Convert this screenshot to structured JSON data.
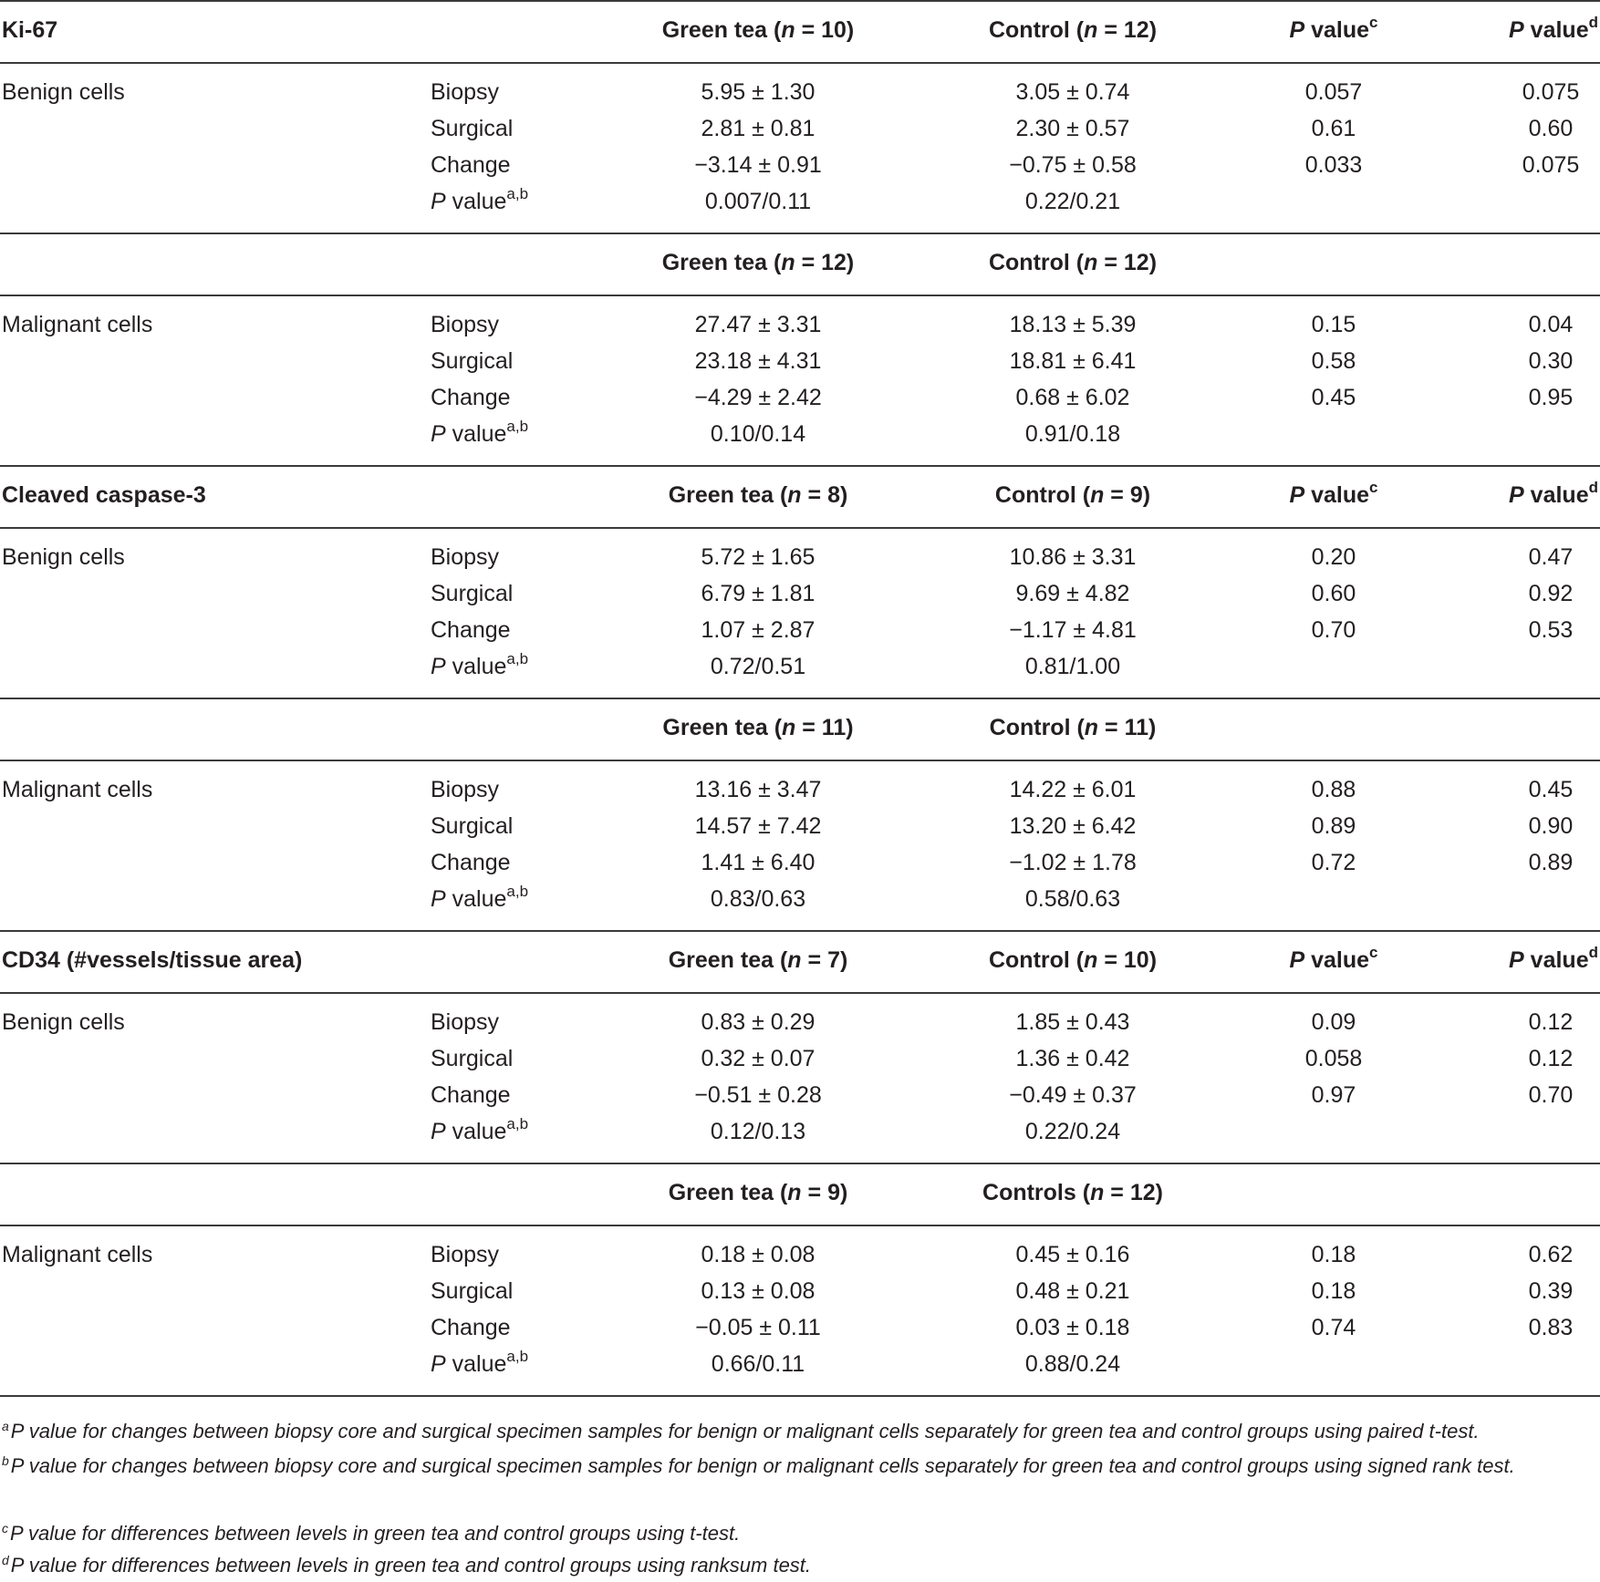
{
  "columns": {
    "p_label": "P",
    "value_word": " value",
    "pvalue_c_sup": "c",
    "pvalue_d_sup": "d",
    "pvalue_ab_sup": "a,b"
  },
  "sections": [
    {
      "title": "Ki-67",
      "groups": [
        {
          "label": "Benign cells",
          "gt_header": "Green tea (",
          "gt_n": "n",
          "gt_eq": " = 10)",
          "ct_header": "Control (",
          "ct_n": "n",
          "ct_eq": " = 12)",
          "rows": [
            {
              "sub": "Biopsy",
              "gt": "5.95 ± 1.30",
              "ct": "3.05 ± 0.74",
              "pc": "0.057",
              "pd": "0.075"
            },
            {
              "sub": "Surgical",
              "gt": "2.81 ± 0.81",
              "ct": "2.30 ± 0.57",
              "pc": "0.61",
              "pd": "0.60"
            },
            {
              "sub": "Change",
              "gt": "−3.14 ± 0.91",
              "ct": "−0.75 ± 0.58",
              "pc": "0.033",
              "pd": "0.075"
            },
            {
              "sub": "P value",
              "gt": "0.007/0.11",
              "ct": "0.22/0.21",
              "pc": "",
              "pd": ""
            }
          ]
        },
        {
          "label": "Malignant cells",
          "gt_header": "Green tea (",
          "gt_n": "n",
          "gt_eq": " = 12)",
          "ct_header": "Control (",
          "ct_n": "n",
          "ct_eq": " = 12)",
          "rows": [
            {
              "sub": "Biopsy",
              "gt": "27.47 ± 3.31",
              "ct": "18.13 ± 5.39",
              "pc": "0.15",
              "pd": "0.04"
            },
            {
              "sub": "Surgical",
              "gt": "23.18 ± 4.31",
              "ct": "18.81 ± 6.41",
              "pc": "0.58",
              "pd": "0.30"
            },
            {
              "sub": "Change",
              "gt": "−4.29 ± 2.42",
              "ct": "0.68 ± 6.02",
              "pc": "0.45",
              "pd": "0.95"
            },
            {
              "sub": "P value",
              "gt": "0.10/0.14",
              "ct": "0.91/0.18",
              "pc": "",
              "pd": ""
            }
          ]
        }
      ]
    },
    {
      "title": "Cleaved caspase-3",
      "groups": [
        {
          "label": "Benign cells",
          "gt_header": "Green tea (",
          "gt_n": "n",
          "gt_eq": " = 8)",
          "ct_header": "Control (",
          "ct_n": "n",
          "ct_eq": " = 9)",
          "rows": [
            {
              "sub": "Biopsy",
              "gt": "5.72 ± 1.65",
              "ct": "10.86 ± 3.31",
              "pc": "0.20",
              "pd": "0.47"
            },
            {
              "sub": "Surgical",
              "gt": "6.79 ± 1.81",
              "ct": "9.69 ± 4.82",
              "pc": "0.60",
              "pd": "0.92"
            },
            {
              "sub": "Change",
              "gt": "1.07 ± 2.87",
              "ct": "−1.17 ± 4.81",
              "pc": "0.70",
              "pd": "0.53"
            },
            {
              "sub": "P value",
              "gt": "0.72/0.51",
              "ct": "0.81/1.00",
              "pc": "",
              "pd": ""
            }
          ]
        },
        {
          "label": "Malignant cells",
          "gt_header": "Green tea (",
          "gt_n": "n",
          "gt_eq": " = 11)",
          "ct_header": "Control (",
          "ct_n": "n",
          "ct_eq": " = 11)",
          "rows": [
            {
              "sub": "Biopsy",
              "gt": "13.16 ± 3.47",
              "ct": "14.22 ± 6.01",
              "pc": "0.88",
              "pd": "0.45"
            },
            {
              "sub": "Surgical",
              "gt": "14.57 ± 7.42",
              "ct": "13.20 ± 6.42",
              "pc": "0.89",
              "pd": "0.90"
            },
            {
              "sub": "Change",
              "gt": "1.41 ± 6.40",
              "ct": "−1.02 ± 1.78",
              "pc": "0.72",
              "pd": "0.89"
            },
            {
              "sub": "P value",
              "gt": "0.83/0.63",
              "ct": "0.58/0.63",
              "pc": "",
              "pd": ""
            }
          ]
        }
      ]
    },
    {
      "title": "CD34 (#vessels/tissue area)",
      "groups": [
        {
          "label": "Benign cells",
          "gt_header": "Green tea (",
          "gt_n": "n",
          "gt_eq": " = 7)",
          "ct_header": "Control (",
          "ct_n": "n",
          "ct_eq": " = 10)",
          "rows": [
            {
              "sub": "Biopsy",
              "gt": "0.83 ± 0.29",
              "ct": "1.85 ± 0.43",
              "pc": "0.09",
              "pd": "0.12"
            },
            {
              "sub": "Surgical",
              "gt": "0.32 ± 0.07",
              "ct": "1.36 ± 0.42",
              "pc": "0.058",
              "pd": "0.12"
            },
            {
              "sub": "Change",
              "gt": "−0.51 ± 0.28",
              "ct": "−0.49 ± 0.37",
              "pc": "0.97",
              "pd": "0.70"
            },
            {
              "sub": "P value",
              "gt": "0.12/0.13",
              "ct": "0.22/0.24",
              "pc": "",
              "pd": ""
            }
          ]
        },
        {
          "label": "Malignant cells",
          "gt_header": "Green tea (",
          "gt_n": "n",
          "gt_eq": " = 9)",
          "ct_header": "Controls (",
          "ct_n": "n",
          "ct_eq": " = 12)",
          "rows": [
            {
              "sub": "Biopsy",
              "gt": "0.18 ± 0.08",
              "ct": "0.45 ± 0.16",
              "pc": "0.18",
              "pd": "0.62"
            },
            {
              "sub": "Surgical",
              "gt": "0.13 ± 0.08",
              "ct": "0.48 ± 0.21",
              "pc": "0.18",
              "pd": "0.39"
            },
            {
              "sub": "Change",
              "gt": "−0.05 ± 0.11",
              "ct": "0.03 ± 0.18",
              "pc": "0.74",
              "pd": "0.83"
            },
            {
              "sub": "P value",
              "gt": "0.66/0.11",
              "ct": "0.88/0.24",
              "pc": "",
              "pd": ""
            }
          ]
        }
      ]
    }
  ],
  "footnotes": [
    {
      "mark": "a",
      "text": "P value for changes between biopsy core and surgical specimen samples for benign or malignant cells separately for green tea and control groups using paired t-test."
    },
    {
      "mark": "b",
      "text": "P value for changes between biopsy core and surgical specimen samples for benign or malignant cells separately for green tea and control groups using signed rank test."
    },
    {
      "mark": "c",
      "text": "P value for differences between levels in green tea and control groups using t-test."
    },
    {
      "mark": "d",
      "text": "P value for differences between levels in green tea and control groups using ranksum test."
    }
  ]
}
